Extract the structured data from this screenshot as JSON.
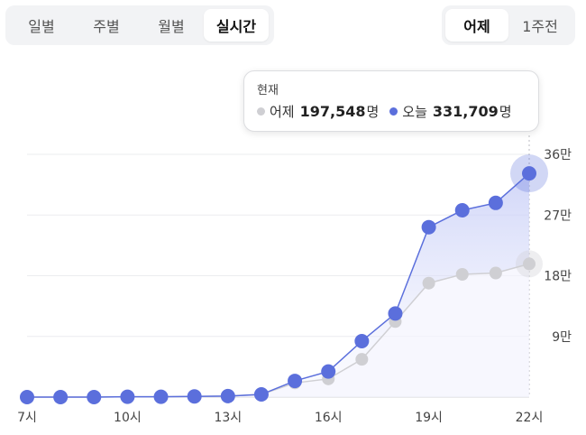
{
  "period_tabs": [
    {
      "label": "일별",
      "active": false
    },
    {
      "label": "주별",
      "active": false
    },
    {
      "label": "월별",
      "active": false
    },
    {
      "label": "실시간",
      "active": true
    }
  ],
  "compare_tabs": [
    {
      "label": "어제",
      "active": true
    },
    {
      "label": "1주전",
      "active": false
    }
  ],
  "tooltip": {
    "title": "현재",
    "yesterday_label": "어제",
    "yesterday_value": "197,548",
    "today_label": "오늘",
    "today_value": "331,709",
    "unit": "명"
  },
  "colors": {
    "today": "#5b6fdc",
    "yesterday": "#cfcfd3",
    "fill": "#dfe2fb"
  },
  "chart_data": {
    "type": "line",
    "x": [
      7,
      8,
      9,
      10,
      11,
      12,
      13,
      14,
      15,
      16,
      17,
      18,
      19,
      20,
      21,
      22
    ],
    "x_tick_values": [
      7,
      10,
      13,
      16,
      19,
      22
    ],
    "x_tick_labels": [
      "7시",
      "10시",
      "13시",
      "16시",
      "19시",
      "22시"
    ],
    "y_tick_values": [
      90000,
      180000,
      270000,
      360000
    ],
    "y_tick_labels": [
      "9만",
      "18만",
      "27만",
      "36만"
    ],
    "ylim": [
      0,
      360000
    ],
    "grid": true,
    "y_axis_side": "right",
    "series": [
      {
        "name": "오늘",
        "values": [
          0,
          0,
          0,
          500,
          500,
          1000,
          1500,
          4000,
          24000,
          38000,
          83000,
          124000,
          252000,
          277000,
          288000,
          331709
        ]
      },
      {
        "name": "어제",
        "values": [
          0,
          0,
          0,
          500,
          500,
          1000,
          1500,
          4000,
          21000,
          27000,
          56000,
          112000,
          169000,
          182000,
          184000,
          197548
        ]
      }
    ]
  }
}
